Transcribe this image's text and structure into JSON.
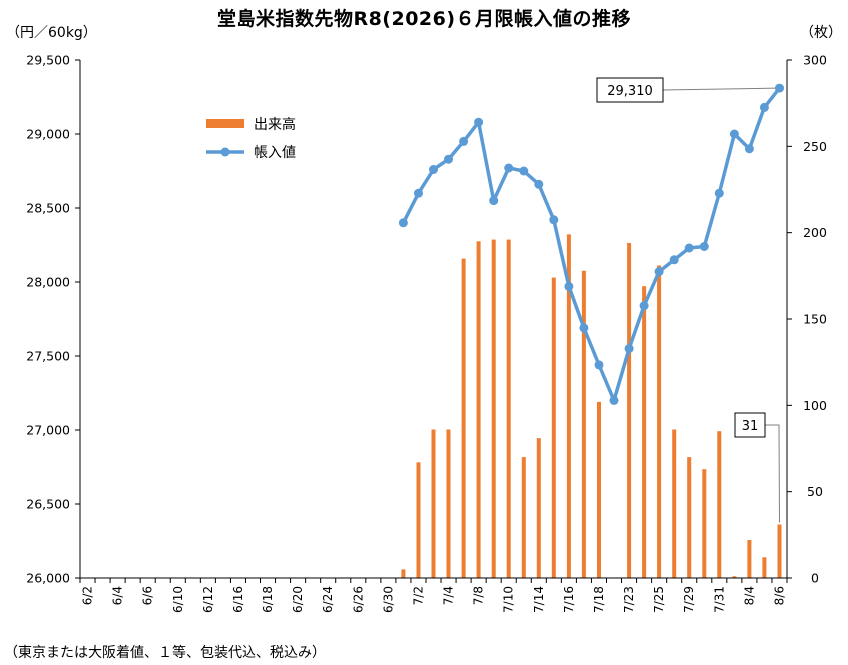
{
  "title": "堂島米指数先物R8(2026)６月限帳入値の推移",
  "y_left_unit": "（円／60kg）",
  "y_right_unit": "（枚）",
  "footnote": "（東京または大阪着値、１等、包装代込、税込み）",
  "colors": {
    "bar": "#ED7D31",
    "line": "#5B9BD5",
    "axis": "#000000"
  },
  "chart_data": {
    "type": "bar+line",
    "x_tick_labels": [
      "6/2",
      "6/4",
      "6/6",
      "6/10",
      "6/12",
      "6/16",
      "6/18",
      "6/20",
      "6/24",
      "6/26",
      "6/30",
      "7/2",
      "7/4",
      "7/8",
      "7/10",
      "7/14",
      "7/16",
      "7/18",
      "7/23",
      "7/25",
      "7/29",
      "7/31",
      "8/4",
      "8/6"
    ],
    "dates": [
      "6/2",
      "6/3",
      "6/4",
      "6/5",
      "6/6",
      "6/9",
      "6/10",
      "6/11",
      "6/12",
      "6/13",
      "6/16",
      "6/17",
      "6/18",
      "6/19",
      "6/20",
      "6/23",
      "6/24",
      "6/25",
      "6/26",
      "6/27",
      "6/30",
      "7/1",
      "7/2",
      "7/3",
      "7/4",
      "7/7",
      "7/8",
      "7/9",
      "7/10",
      "7/11",
      "7/14",
      "7/15",
      "7/16",
      "7/17",
      "7/18",
      "7/22",
      "7/23",
      "7/24",
      "7/25",
      "7/28",
      "7/29",
      "7/30",
      "7/31",
      "8/1",
      "8/4",
      "8/5",
      "8/6"
    ],
    "y_left": {
      "min": 26000,
      "max": 29500,
      "step": 500,
      "tick_labels": [
        "26,000",
        "26,500",
        "27,000",
        "27,500",
        "28,000",
        "28,500",
        "29,000",
        "29,500"
      ]
    },
    "y_right": {
      "min": 0,
      "max": 300,
      "step": 50,
      "tick_labels": [
        "0",
        "50",
        "100",
        "150",
        "200",
        "250",
        "300"
      ]
    },
    "legend": {
      "position": "upper-left-inside",
      "entries": [
        "出来高",
        "帳入値"
      ]
    },
    "grid": false,
    "series": [
      {
        "name": "出来高",
        "type": "bar",
        "axis": "right",
        "values": [
          0,
          0,
          0,
          0,
          0,
          0,
          0,
          0,
          0,
          0,
          0,
          0,
          0,
          0,
          0,
          0,
          0,
          0,
          0,
          0,
          0,
          5,
          67,
          86,
          86,
          185,
          195,
          196,
          196,
          70,
          81,
          174,
          199,
          178,
          102,
          0,
          194,
          169,
          181,
          86,
          70,
          63,
          85,
          1,
          22,
          12,
          31
        ]
      },
      {
        "name": "帳入値",
        "type": "line",
        "axis": "left",
        "values": [
          null,
          null,
          null,
          null,
          null,
          null,
          null,
          null,
          null,
          null,
          null,
          null,
          null,
          null,
          null,
          null,
          null,
          null,
          null,
          null,
          null,
          28400,
          28600,
          28760,
          28830,
          28950,
          29080,
          28550,
          28770,
          28750,
          28660,
          28420,
          27970,
          27690,
          27440,
          27200,
          27550,
          27840,
          28070,
          28150,
          28230,
          28240,
          28600,
          29000,
          28900,
          29180,
          29310
        ]
      }
    ],
    "annotations": [
      {
        "text": "29,310",
        "target_series": "帳入値",
        "target_date": "8/6"
      },
      {
        "text": "31",
        "target_series": "出来高",
        "target_date": "8/6"
      }
    ]
  }
}
